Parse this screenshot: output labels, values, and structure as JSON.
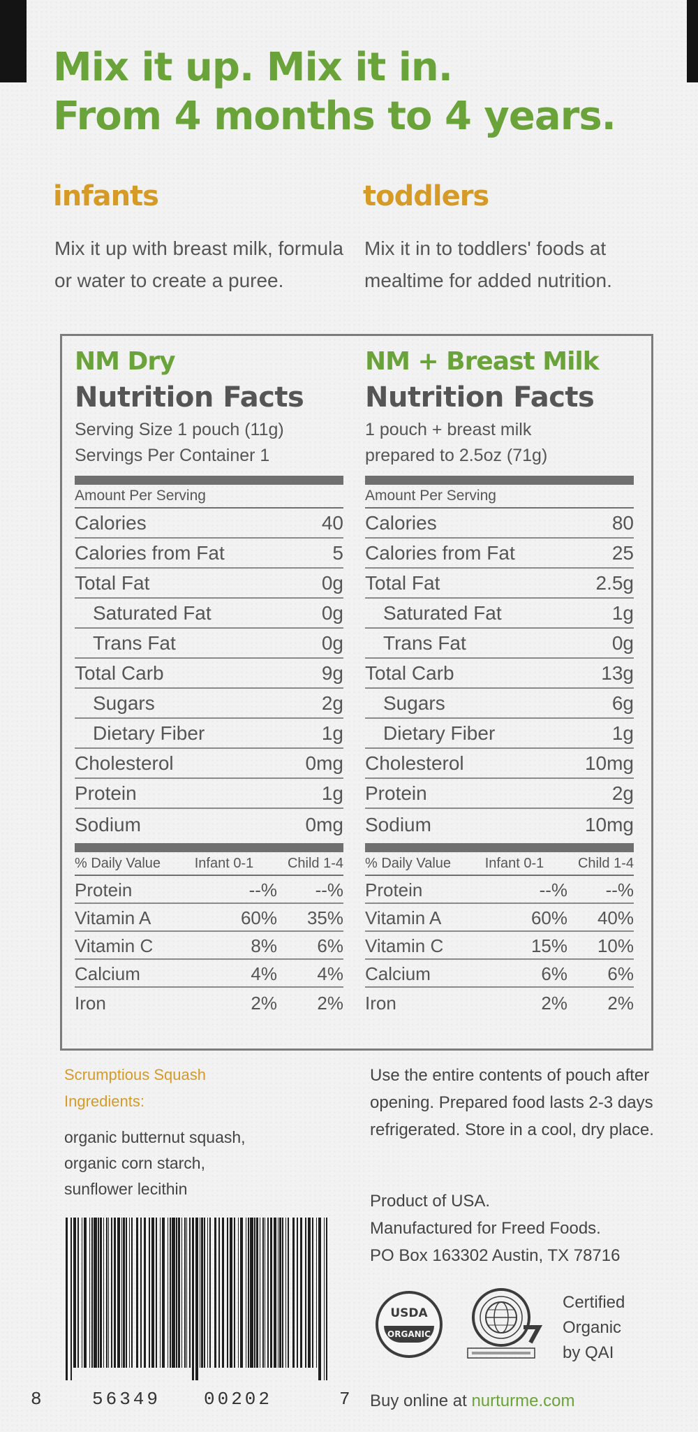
{
  "headline": {
    "line1": "Mix it up. Mix it in.",
    "line2": "From 4 months to 4 years."
  },
  "infants": {
    "title": "infants",
    "text": "Mix it up with breast milk, formula or water to create a puree."
  },
  "toddlers": {
    "title": "toddlers",
    "text": "Mix it in to toddlers' foods at mealtime for added nutrition."
  },
  "dry_panel": {
    "name": "NM Dry",
    "title": "Nutrition Facts",
    "serving_line1": "Serving Size 1 pouch (11g)",
    "serving_line2": "Servings Per Container 1",
    "amount_per": "Amount Per Serving",
    "rows": [
      {
        "label": "Calories",
        "value": "40"
      },
      {
        "label": "Calories from Fat",
        "value": "5"
      },
      {
        "label": "Total Fat",
        "value": "0g"
      },
      {
        "label": "Saturated Fat",
        "value": "0g"
      },
      {
        "label": "Trans Fat",
        "value": "0g"
      },
      {
        "label": "Total Carb",
        "value": "9g"
      },
      {
        "label": "Sugars",
        "value": "2g"
      },
      {
        "label": "Dietary Fiber",
        "value": "1g"
      },
      {
        "label": "Cholesterol",
        "value": "0mg"
      },
      {
        "label": "Protein",
        "value": "1g"
      },
      {
        "label": "Sodium",
        "value": "0mg"
      }
    ],
    "dv_header": {
      "label": "% Daily Value",
      "infant": "Infant 0-1",
      "child": "Child 1-4"
    },
    "vitamins": [
      {
        "label": "Protein",
        "infant": "--%",
        "child": "--%"
      },
      {
        "label": "Vitamin A",
        "infant": "60%",
        "child": "35%"
      },
      {
        "label": "Vitamin C",
        "infant": "8%",
        "child": "6%"
      },
      {
        "label": "Calcium",
        "infant": "4%",
        "child": "4%"
      },
      {
        "label": "Iron",
        "infant": "2%",
        "child": "2%"
      }
    ]
  },
  "milk_panel": {
    "name": "NM + Breast Milk",
    "title": "Nutrition Facts",
    "serving_line1": "1 pouch + breast milk",
    "serving_line2": "prepared to 2.5oz (71g)",
    "amount_per": "Amount Per Serving",
    "rows": [
      {
        "label": "Calories",
        "value": "80"
      },
      {
        "label": "Calories from Fat",
        "value": "25"
      },
      {
        "label": "Total Fat",
        "value": "2.5g"
      },
      {
        "label": "Saturated Fat",
        "value": "1g"
      },
      {
        "label": "Trans Fat",
        "value": "0g"
      },
      {
        "label": "Total Carb",
        "value": "13g"
      },
      {
        "label": "Sugars",
        "value": "6g"
      },
      {
        "label": "Dietary Fiber",
        "value": "1g"
      },
      {
        "label": "Cholesterol",
        "value": "10mg"
      },
      {
        "label": "Protein",
        "value": "2g"
      },
      {
        "label": "Sodium",
        "value": "10mg"
      }
    ],
    "dv_header": {
      "label": "% Daily Value",
      "infant": "Infant 0-1",
      "child": "Child 1-4"
    },
    "vitamins": [
      {
        "label": "Protein",
        "infant": "--%",
        "child": "--%"
      },
      {
        "label": "Vitamin A",
        "infant": "60%",
        "child": "40%"
      },
      {
        "label": "Vitamin C",
        "infant": "15%",
        "child": "10%"
      },
      {
        "label": "Calcium",
        "infant": "6%",
        "child": "6%"
      },
      {
        "label": "Iron",
        "infant": "2%",
        "child": "2%"
      }
    ]
  },
  "ingredients": {
    "title_line1": "Scrumptious Squash",
    "title_line2": "Ingredients:",
    "line1": "organic butternut squash,",
    "line2": "organic corn starch,",
    "line3": "sunflower lecithin"
  },
  "usage": "Use the entire contents of pouch after opening. Prepared food lasts 2-3 days refrigerated. Store in a cool, dry place.",
  "address": {
    "line1": "Product of USA.",
    "line2": "Manufactured for Freed Foods.",
    "line3": "PO Box 163302  Austin, TX 78716"
  },
  "barcode": {
    "lead": "8",
    "group1": "56349",
    "group2": "00202",
    "check": "7"
  },
  "usda_seal": {
    "top": "USDA",
    "bottom": "ORGANIC"
  },
  "certified": {
    "line1": "Certified",
    "line2": "Organic",
    "line3": "by QAI"
  },
  "buy_online": {
    "prefix": "Buy online at ",
    "url": "nurturme.com"
  },
  "colors": {
    "green": "#6aa33a",
    "orange": "#d69a27",
    "text": "#555555"
  }
}
